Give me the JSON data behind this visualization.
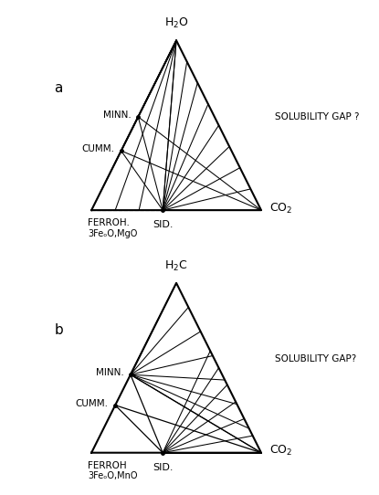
{
  "fig_width": 4.15,
  "fig_height": 5.42,
  "dpi": 100,
  "bg_color": "white",
  "line_color": "black",
  "diagram_a": {
    "label": "a",
    "top_label": "H$_2$O",
    "right_label": "CO$_2$",
    "sid_label": "SID.",
    "ferroh_label": "FERROH.",
    "ferroh_sublabel": "3FeₒO,MgO",
    "minn_label": "MINN.",
    "cumm_label": "CUMM.",
    "solubility_label": "SOLUBILITY GAP ?"
  },
  "diagram_b": {
    "label": "b",
    "top_label": "H$_2$C",
    "right_label": "CO$_2$",
    "sid_label": "SID.",
    "ferroh_label": "FERROH",
    "ferroh_sublabel": "3FeₒO,MnO",
    "minn_label": "MINN.",
    "cumm_label": "CUMM.",
    "solubility_label": "SOLUBILITY GAP?"
  }
}
